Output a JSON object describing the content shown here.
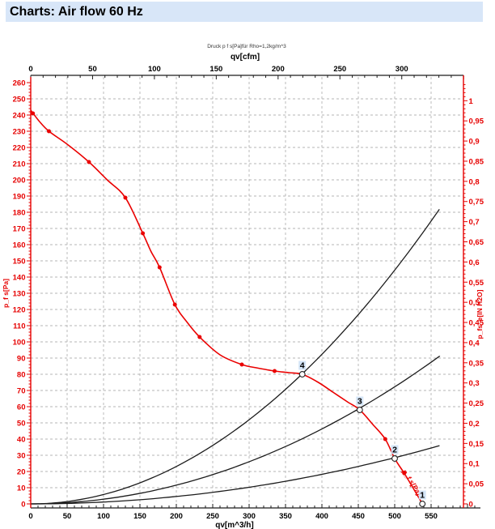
{
  "page": {
    "title": "Charts: Air flow 60 Hz"
  },
  "colors": {
    "title_bar_bg": "#d8e6f8",
    "title_text": "#000000",
    "axis_red": "#e60000",
    "curve_red": "#ea0000",
    "curve_black": "#1c1c1c",
    "axis_black": "#1c1c1c",
    "grid": "#b4b4b4",
    "point_label_bg": "#cfe2f6",
    "page_bg": "#ffffff"
  },
  "chart_data": {
    "type": "line",
    "title": "Druck p f s[Pa]für Rho=1,2kg/m^3",
    "axes": {
      "top": {
        "label": "qv[cfm]",
        "min": 0,
        "max": 350,
        "major": 50,
        "minor": 10,
        "label_max": 300
      },
      "bottom": {
        "label": "qv[m^3/h]",
        "min": 0,
        "max": 610,
        "major": 50,
        "minor": 10,
        "label_max": 550
      },
      "left": {
        "label": "p_f s[Pa]",
        "min": 0,
        "max": 260,
        "major": 10,
        "minor": 2,
        "label_max": 260
      },
      "right": {
        "label": "p_fs_e[IN H2O]",
        "min": 0,
        "max": 1.04,
        "major": 0.05,
        "minor": 0.01,
        "label_max": 1,
        "decimal_comma": true
      }
    },
    "gridlines": {
      "vertical_step_m3h": 50,
      "horizontal_step_pa": 10,
      "style": "dashed"
    },
    "fan_curve": {
      "name": "p_f s[Pa]",
      "inline_label": "p_f s[Pa]",
      "x_unit": "m^3/h",
      "y_unit": "Pa",
      "points": [
        [
          0,
          243
        ],
        [
          12,
          236
        ],
        [
          25,
          230
        ],
        [
          50,
          222
        ],
        [
          80,
          211
        ],
        [
          105,
          200
        ],
        [
          130,
          189
        ],
        [
          154,
          167
        ],
        [
          165,
          156
        ],
        [
          177,
          146
        ],
        [
          198,
          123
        ],
        [
          215,
          112
        ],
        [
          232,
          103
        ],
        [
          260,
          92
        ],
        [
          290,
          86
        ],
        [
          310,
          84
        ],
        [
          335,
          82
        ],
        [
          355,
          81
        ],
        [
          373,
          80
        ],
        [
          395,
          75
        ],
        [
          415,
          69
        ],
        [
          435,
          63
        ],
        [
          452,
          58
        ],
        [
          470,
          49
        ],
        [
          487,
          40
        ],
        [
          500,
          28
        ],
        [
          513,
          19
        ],
        [
          525,
          10
        ],
        [
          538,
          0
        ]
      ],
      "marked_points": [
        [
          3,
          241
        ],
        [
          25,
          230
        ],
        [
          80,
          211
        ],
        [
          130,
          189
        ],
        [
          154,
          167
        ],
        [
          177,
          146
        ],
        [
          198,
          123
        ],
        [
          232,
          103
        ],
        [
          290,
          86
        ],
        [
          335,
          82
        ],
        [
          487,
          40
        ],
        [
          513,
          19
        ]
      ]
    },
    "system_curves": [
      {
        "k": 0.000577,
        "qv_end": 560
      },
      {
        "k": 0.000289,
        "qv_end": 562
      },
      {
        "k": 0.000114,
        "qv_end": 560
      }
    ],
    "operating_points": [
      {
        "label": "4",
        "qv": 373,
        "p": 80
      },
      {
        "label": "3",
        "qv": 452,
        "p": 58
      },
      {
        "label": "2",
        "qv": 500,
        "p": 28
      },
      {
        "label": "1",
        "qv": 538,
        "p": 0
      }
    ]
  }
}
